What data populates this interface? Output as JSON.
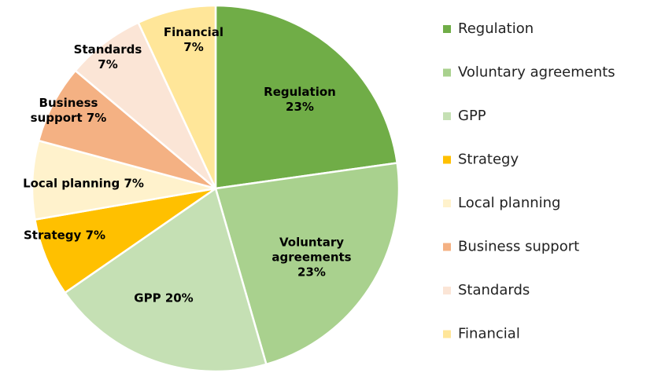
{
  "chart_data": {
    "type": "pie",
    "categories": [
      "Regulation",
      "Voluntary agreements",
      "GPP",
      "Strategy",
      "Local planning",
      "Business support",
      "Standards",
      "Financial"
    ],
    "values": [
      23,
      23,
      20,
      7,
      7,
      7,
      7,
      7
    ],
    "value_labels": [
      "23%",
      "23%",
      "20%",
      "7%",
      "7%",
      "7%",
      "7%",
      "7%"
    ],
    "colors": [
      "#70ad47",
      "#a9d18e",
      "#c5e0b4",
      "#ffc000",
      "#fff2cc",
      "#f4b183",
      "#fbe5d6",
      "#ffe699"
    ],
    "legend": "right"
  }
}
